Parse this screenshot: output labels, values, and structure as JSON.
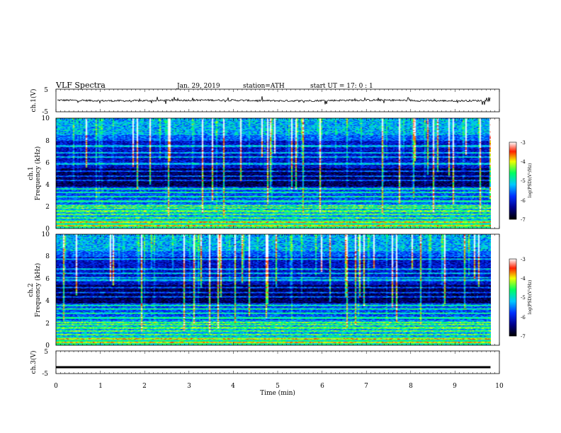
{
  "header": {
    "title": "VLF  Spectra",
    "date": "Jan. 29, 2019",
    "station": "station=ATH",
    "start": "start  UT  =   17: 0  : 1"
  },
  "chart_data": [
    {
      "type": "line",
      "name": "ch1-waveform",
      "ylabel": "ch.1(V)",
      "yticks": [
        "5",
        "-5"
      ],
      "ylim": [
        -5,
        5
      ],
      "description_series": "noisy waveform centred near 0 V, amplitude about 0.3 V with spikes up to about 1.5 V"
    },
    {
      "type": "heatmap",
      "name": "ch1-spectrogram",
      "channel_label": "ch.1",
      "ylabel": "Frequency  (kHz)",
      "yticks": [
        "0",
        "2",
        "4",
        "6",
        "8",
        "10"
      ],
      "ylim": [
        0,
        10
      ],
      "colorbar": {
        "label": "log(PSD)(V²/Hz)",
        "ticks": [
          "-3",
          "-4",
          "-5",
          "-6",
          "-7"
        ],
        "range": [
          -7,
          -3
        ]
      },
      "bands_khz": [
        0.3,
        0.6,
        1.0,
        1.3,
        1.6,
        1.9,
        2.1,
        2.5,
        2.9,
        3.3,
        3.6,
        4.4,
        4.8,
        5.2,
        5.9,
        6.5,
        6.9,
        7.5
      ],
      "data_extent_min": 9.8
    },
    {
      "type": "heatmap",
      "name": "ch2-spectrogram",
      "channel_label": "ch.2",
      "ylabel": "Frequency  (kHz)",
      "yticks": [
        "0",
        "2",
        "4",
        "6",
        "8",
        "10"
      ],
      "ylim": [
        0,
        10
      ],
      "colorbar": {
        "label": "log(PSD)(V²/Hz)",
        "ticks": [
          "-3",
          "-4",
          "-5",
          "-6",
          "-7"
        ],
        "range": [
          -7,
          -3
        ]
      },
      "bands_khz": [
        0.3,
        0.6,
        1.0,
        1.3,
        1.6,
        1.9,
        2.1,
        2.5,
        2.9,
        3.3,
        3.6,
        4.4,
        4.8,
        5.2,
        5.9,
        6.1,
        6.5,
        6.9,
        7.8
      ],
      "data_extent_min": 9.8
    },
    {
      "type": "line",
      "name": "ch3-waveform",
      "ylabel": "ch.3(V)",
      "yticks": [
        "5",
        "-5"
      ],
      "ylim": [
        -5,
        5
      ],
      "x": [
        0,
        9.8
      ],
      "y": [
        -2.2,
        -2.2
      ]
    }
  ],
  "xaxis": {
    "label": "Time  (min)",
    "ticks": [
      "0",
      "1",
      "2",
      "3",
      "4",
      "5",
      "6",
      "7",
      "8",
      "9",
      "10"
    ],
    "xlim": [
      0,
      10
    ]
  }
}
